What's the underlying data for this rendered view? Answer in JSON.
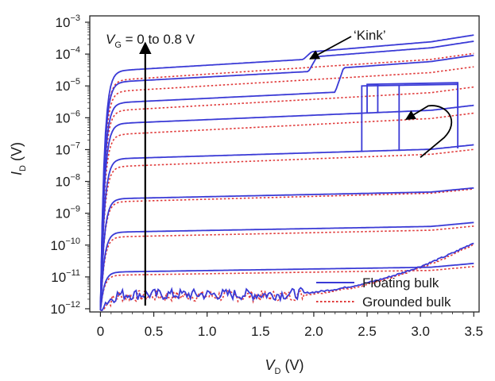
{
  "chart_data": {
    "type": "line",
    "title": "",
    "xlabel": {
      "main": "V",
      "sub": "D",
      "unit": " (V)"
    },
    "ylabel": {
      "main": "I",
      "sub": "D",
      "unit": " (V)"
    },
    "xlim": [
      -0.1,
      3.55
    ],
    "ylim_log10": [
      -12.1,
      -2.8
    ],
    "x_ticks": [
      0,
      0.5,
      1.0,
      1.5,
      2.0,
      2.5,
      3.0,
      3.5
    ],
    "x_tick_labels": [
      "0",
      "0.5",
      "1.0",
      "1.5",
      "2.0",
      "2.5",
      "3.0",
      "3.5"
    ],
    "y_ticks_log10": [
      -12,
      -11,
      -10,
      -9,
      -8,
      -7,
      -6,
      -5,
      -4,
      -3
    ],
    "y_tick_labels": [
      {
        "base": "10",
        "exp": "−12"
      },
      {
        "base": "10",
        "exp": "−11"
      },
      {
        "base": "10",
        "exp": "−10"
      },
      {
        "base": "10",
        "exp": "−9"
      },
      {
        "base": "10",
        "exp": "−8"
      },
      {
        "base": "10",
        "exp": "−7"
      },
      {
        "base": "10",
        "exp": "−6"
      },
      {
        "base": "10",
        "exp": "−5"
      },
      {
        "base": "10",
        "exp": "−4"
      },
      {
        "base": "10",
        "exp": "−3"
      }
    ],
    "series_styles": [
      {
        "name": "Floating bulk",
        "color": "#3a3ad6",
        "dash": "solid"
      },
      {
        "name": "Grounded bulk",
        "color": "#e03a3a",
        "dash": "dotted"
      }
    ],
    "legend": {
      "position": "bottom-right",
      "entries": [
        "Floating bulk",
        "Grounded bulk"
      ]
    },
    "annotations": {
      "vg_sweep": {
        "italic": "V",
        "sub": "G",
        "rest": " = 0 to 0.8 V",
        "arrow_x": 0.42,
        "arrow_from_log": -11.9,
        "arrow_to_log": -3.65
      },
      "kink": {
        "text": "‘Kink’",
        "arrow_to_x": 1.95,
        "arrow_to_log": -4.15
      },
      "hysteresis_arrow": {
        "x": 2.85,
        "log": -6.0
      }
    },
    "curves_floating": [
      {
        "vg_index": 0,
        "sat_log": -11.9,
        "slope_log_per_v": 0.0,
        "tail": "rise"
      },
      {
        "vg_index": 1,
        "sat_log": -10.85,
        "slope_log_per_v": 0.05
      },
      {
        "vg_index": 2,
        "sat_log": -9.6,
        "slope_log_per_v": 0.06
      },
      {
        "vg_index": 3,
        "sat_log": -8.55,
        "slope_log_per_v": 0.07
      },
      {
        "vg_index": 4,
        "sat_log": -7.3,
        "slope_log_per_v": 0.1,
        "hysteresis": {
          "x_up": 2.8,
          "x_down": 2.45,
          "jump_to_log": -5.0
        }
      },
      {
        "vg_index": 5,
        "sat_log": -6.2,
        "slope_log_per_v": 0.14,
        "hysteresis": {
          "x_up": 2.6,
          "x_down": 2.5,
          "jump_to_log": -4.95
        }
      },
      {
        "vg_index": 6,
        "sat_log": -5.55,
        "slope_log_per_v": 0.16,
        "kink": {
          "x": 2.2,
          "jump_to_log": -4.45
        }
      },
      {
        "vg_index": 7,
        "sat_log": -4.9,
        "slope_log_per_v": 0.18,
        "kink": {
          "x": 1.95,
          "jump_to_log": -4.1
        }
      },
      {
        "vg_index": 8,
        "sat_log": -4.55,
        "slope_log_per_v": 0.2,
        "kink": {
          "x": 1.9,
          "jump_to_log": -3.95
        }
      }
    ],
    "curves_grounded": [
      {
        "vg_index": 0,
        "sat_log": -11.95,
        "slope_log_per_v": 0.0,
        "tail": "rise"
      },
      {
        "vg_index": 1,
        "sat_log": -10.95,
        "slope_log_per_v": 0.05
      },
      {
        "vg_index": 2,
        "sat_log": -9.75,
        "slope_log_per_v": 0.07
      },
      {
        "vg_index": 3,
        "sat_log": -8.65,
        "slope_log_per_v": 0.09
      },
      {
        "vg_index": 4,
        "sat_log": -7.55,
        "slope_log_per_v": 0.13
      },
      {
        "vg_index": 5,
        "sat_log": -6.55,
        "slope_log_per_v": 0.17
      },
      {
        "vg_index": 6,
        "sat_log": -5.8,
        "slope_log_per_v": 0.19
      },
      {
        "vg_index": 7,
        "sat_log": -5.2,
        "slope_log_per_v": 0.2
      },
      {
        "vg_index": 8,
        "sat_log": -4.85,
        "slope_log_per_v": 0.22
      }
    ]
  }
}
